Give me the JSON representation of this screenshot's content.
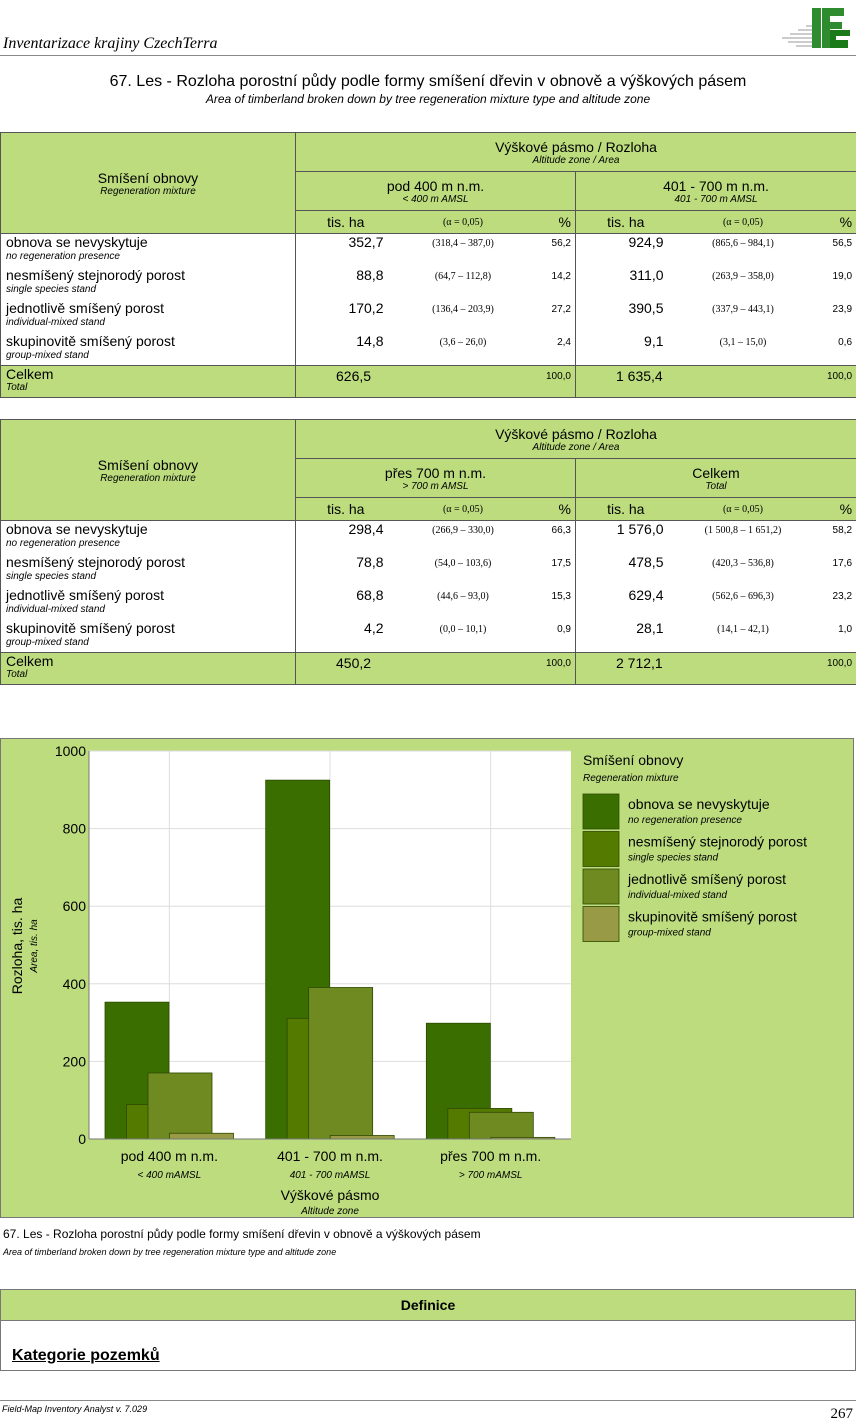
{
  "header": {
    "title": "Inventarizace krajiny CzechTerra",
    "logo_text": "IFER"
  },
  "title": {
    "cz": "67. Les - Rozloha porostní půdy podle formy smíšení dřevin v obnově a výškových pásem",
    "en": "Area of timberland broken down by tree regeneration mixture type and altitude zone"
  },
  "table_common": {
    "row_header_cz": "Smíšení obnovy",
    "row_header_en": "Regeneration mixture",
    "span_cz": "Výškové pásmo / Rozloha",
    "span_en": "Altitude zone / Area",
    "unit": "tis. ha",
    "alpha": "(α = 0,05)",
    "pct": "%",
    "rows": [
      {
        "cz": "obnova se nevyskytuje",
        "en": "no regeneration presence"
      },
      {
        "cz": "nesmíšený stejnorodý porost",
        "en": "single species stand"
      },
      {
        "cz": "jednotlivě smíšený porost",
        "en": "individual-mixed stand"
      },
      {
        "cz": "skupinovitě smíšený porost",
        "en": "group-mixed stand"
      }
    ],
    "total_cz": "Celkem",
    "total_en": "Total"
  },
  "tables": [
    {
      "groups": [
        {
          "cz": "pod 400 m n.m.",
          "en": "< 400 m AMSL",
          "values": [
            [
              "352,7",
              "(318,4  –  387,0)",
              "56,2"
            ],
            [
              "88,8",
              "(64,7  –  112,8)",
              "14,2"
            ],
            [
              "170,2",
              "(136,4  –  203,9)",
              "27,2"
            ],
            [
              "14,8",
              "(3,6  –  26,0)",
              "2,4"
            ]
          ],
          "total": [
            "626,5",
            "100,0"
          ]
        },
        {
          "cz": "401 - 700 m n.m.",
          "en": "401 - 700 m AMSL",
          "values": [
            [
              "924,9",
              "(865,6  –  984,1)",
              "56,5"
            ],
            [
              "311,0",
              "(263,9  –  358,0)",
              "19,0"
            ],
            [
              "390,5",
              "(337,9  –  443,1)",
              "23,9"
            ],
            [
              "9,1",
              "(3,1  –  15,0)",
              "0,6"
            ]
          ],
          "total": [
            "1 635,4",
            "100,0"
          ]
        }
      ]
    },
    {
      "groups": [
        {
          "cz": "přes 700 m n.m.",
          "en": "> 700 m AMSL",
          "values": [
            [
              "298,4",
              "(266,9  –  330,0)",
              "66,3"
            ],
            [
              "78,8",
              "(54,0  –  103,6)",
              "17,5"
            ],
            [
              "68,8",
              "(44,6  –  93,0)",
              "15,3"
            ],
            [
              "4,2",
              "(0,0  –  10,1)",
              "0,9"
            ]
          ],
          "total": [
            "450,2",
            "100,0"
          ]
        },
        {
          "cz": "Celkem",
          "en": "Total",
          "values": [
            [
              "1 576,0",
              "(1 500,8 – 1 651,2)",
              "58,2"
            ],
            [
              "478,5",
              "(420,3  –  536,8)",
              "17,6"
            ],
            [
              "629,4",
              "(562,6  –  696,3)",
              "23,2"
            ],
            [
              "28,1",
              "(14,1  –  42,1)",
              "1,0"
            ]
          ],
          "total": [
            "2 712,1",
            "100,0"
          ]
        }
      ]
    }
  ],
  "chart_data": {
    "type": "bar",
    "ylabel": "Rozloha, tis. ha",
    "ylabel_en": "Area, tis. ha",
    "xlabel": "Výškové pásmo",
    "xlabel_en": "Altitude zone",
    "ylim": [
      0,
      1000
    ],
    "yticks": [
      "0",
      "200",
      "400",
      "600",
      "800",
      "1000"
    ],
    "grid": true,
    "legend_position": "right",
    "legend_title": "Smíšení obnovy",
    "legend_title_en": "Regeneration mixture",
    "categories": [
      {
        "cz": "pod 400 m n.m.",
        "en": "< 400 mAMSL"
      },
      {
        "cz": "401 - 700 m n.m.",
        "en": "401 - 700 mAMSL"
      },
      {
        "cz": "přes 700 m n.m.",
        "en": "> 700 mAMSL"
      }
    ],
    "series": [
      {
        "name": "obnova se nevyskytuje",
        "name_en": "no regeneration presence",
        "color": "#3a6e00",
        "values": [
          352.7,
          924.9,
          298.4
        ]
      },
      {
        "name": "nesmíšený stejnorodý porost",
        "name_en": "single species stand",
        "color": "#557a00",
        "values": [
          88.8,
          311.0,
          78.8
        ]
      },
      {
        "name": "jednotlivě smíšený porost",
        "name_en": "individual-mixed stand",
        "color": "#6e8a20",
        "values": [
          170.2,
          390.5,
          68.8
        ]
      },
      {
        "name": "skupinovitě smíšený porost",
        "name_en": "group-mixed stand",
        "color": "#989a45",
        "values": [
          14.8,
          9.1,
          4.2
        ]
      }
    ]
  },
  "caption": {
    "cz": "67. Les - Rozloha porostní půdy podle formy smíšení dřevin v obnově a výškových pásem",
    "en": "Area of timberland broken down by tree regeneration mixture type and altitude zone"
  },
  "definitions": {
    "heading": "Definice",
    "section": "Kategorie pozemků"
  },
  "footer": {
    "software": "Field-Map Inventory Analyst v. 7.029",
    "page": "267"
  }
}
